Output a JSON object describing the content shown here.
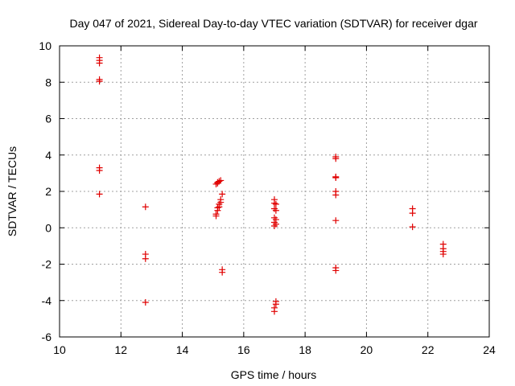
{
  "chart_data": {
    "type": "scatter",
    "title": "Day 047 of 2021, Sidereal Day-to-day VTEC variation (SDTVAR) for receiver dgar",
    "xlabel": "GPS time / hours",
    "ylabel": "SDTVAR / TECUs",
    "xlim": [
      10,
      24
    ],
    "ylim": [
      -6,
      10
    ],
    "xticks": [
      10,
      12,
      14,
      16,
      18,
      20,
      22,
      24
    ],
    "yticks": [
      -6,
      -4,
      -2,
      0,
      2,
      4,
      6,
      8,
      10
    ],
    "grid": true,
    "marker": "plus",
    "color": "#e00000",
    "points": [
      [
        11.3,
        9.35
      ],
      [
        11.3,
        9.2
      ],
      [
        11.3,
        9.05
      ],
      [
        11.3,
        8.15
      ],
      [
        11.3,
        8.05
      ],
      [
        11.3,
        3.3
      ],
      [
        11.3,
        3.15
      ],
      [
        11.3,
        1.85
      ],
      [
        12.8,
        1.15
      ],
      [
        12.8,
        -1.45
      ],
      [
        12.8,
        -1.7
      ],
      [
        12.8,
        -4.1
      ],
      [
        15.1,
        0.65
      ],
      [
        15.1,
        0.75
      ],
      [
        15.15,
        0.95
      ],
      [
        15.15,
        1.1
      ],
      [
        15.2,
        1.15
      ],
      [
        15.2,
        1.3
      ],
      [
        15.25,
        1.4
      ],
      [
        15.25,
        1.55
      ],
      [
        15.3,
        1.85
      ],
      [
        15.1,
        2.4
      ],
      [
        15.15,
        2.45
      ],
      [
        15.15,
        2.5
      ],
      [
        15.2,
        2.55
      ],
      [
        15.25,
        2.6
      ],
      [
        15.3,
        -2.3
      ],
      [
        15.3,
        -2.45
      ],
      [
        17.0,
        1.55
      ],
      [
        17.0,
        1.35
      ],
      [
        17.05,
        1.3
      ],
      [
        17.0,
        1.05
      ],
      [
        17.05,
        0.95
      ],
      [
        17.0,
        0.55
      ],
      [
        17.05,
        0.45
      ],
      [
        17.0,
        0.3
      ],
      [
        17.05,
        0.2
      ],
      [
        17.0,
        0.1
      ],
      [
        17.05,
        -4.05
      ],
      [
        17.05,
        -4.2
      ],
      [
        17.0,
        -4.4
      ],
      [
        17.0,
        -4.6
      ],
      [
        19.0,
        3.9
      ],
      [
        19.0,
        3.8
      ],
      [
        19.0,
        2.8
      ],
      [
        19.0,
        2.75
      ],
      [
        19.0,
        2.0
      ],
      [
        19.0,
        1.8
      ],
      [
        19.0,
        0.4
      ],
      [
        19.0,
        -2.2
      ],
      [
        19.0,
        -2.35
      ],
      [
        21.5,
        1.05
      ],
      [
        21.5,
        0.8
      ],
      [
        21.5,
        0.05
      ],
      [
        22.5,
        -0.9
      ],
      [
        22.5,
        -1.15
      ],
      [
        22.5,
        -1.3
      ],
      [
        22.5,
        -1.45
      ]
    ]
  }
}
